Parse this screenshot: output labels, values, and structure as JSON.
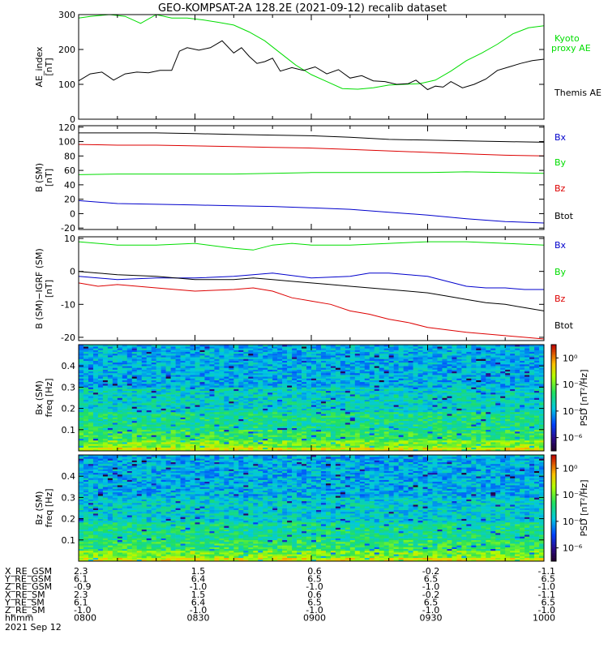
{
  "title": "GEO-KOMPSAT-2A 128.2E (2021-09-12) recalib dataset",
  "colors": {
    "black": "#000000",
    "red": "#dd0000",
    "green": "#00dd00",
    "blue": "#0000cc"
  },
  "chart_data": [
    {
      "type": "line",
      "panel": "ae",
      "ylabel_lines": [
        "AE_index",
        "[nT]"
      ],
      "ylim": [
        0,
        300
      ],
      "yticks": [
        "0",
        "100",
        "200",
        "300"
      ],
      "xlim": [
        0,
        120
      ],
      "series": [
        {
          "name": "Kyoto proxy AE",
          "label_lines": [
            "Kyoto",
            "proxy AE"
          ],
          "color": "green",
          "x": [
            0,
            3,
            8,
            12,
            16,
            20,
            24,
            28,
            32,
            36,
            40,
            44,
            48,
            52,
            56,
            60,
            64,
            68,
            72,
            76,
            80,
            84,
            88,
            92,
            96,
            100,
            104,
            108,
            112,
            116,
            120
          ],
          "y": [
            290,
            295,
            300,
            295,
            275,
            300,
            290,
            290,
            285,
            278,
            270,
            250,
            225,
            190,
            155,
            128,
            108,
            88,
            86,
            90,
            98,
            100,
            102,
            112,
            138,
            168,
            190,
            215,
            245,
            262,
            268
          ]
        },
        {
          "name": "Themis AE",
          "label_lines": [
            "Themis AE"
          ],
          "color": "black",
          "x": [
            0,
            3,
            6,
            9,
            12,
            15,
            18,
            21,
            24,
            26,
            28,
            31,
            34,
            37,
            40,
            42,
            44,
            46,
            48,
            50,
            52,
            55,
            58,
            61,
            64,
            67,
            70,
            73,
            76,
            79,
            82,
            85,
            87,
            90,
            92,
            94,
            96,
            99,
            102,
            105,
            108,
            111,
            114,
            117,
            120
          ],
          "y": [
            110,
            130,
            135,
            112,
            130,
            135,
            133,
            140,
            140,
            195,
            205,
            198,
            205,
            225,
            190,
            205,
            180,
            160,
            165,
            175,
            138,
            148,
            140,
            150,
            130,
            142,
            118,
            125,
            110,
            108,
            100,
            102,
            112,
            85,
            95,
            92,
            108,
            90,
            100,
            115,
            140,
            150,
            160,
            168,
            172
          ]
        }
      ]
    },
    {
      "type": "line",
      "panel": "bsm",
      "ylabel_lines": [
        "B (SM)",
        "[nT]"
      ],
      "ylim": [
        -22,
        122
      ],
      "yticks": [
        "-20",
        "0",
        "20",
        "40",
        "60",
        "80",
        "100",
        "120"
      ],
      "xlim": [
        0,
        120
      ],
      "series": [
        {
          "name": "Bx",
          "color": "black",
          "x": [
            0,
            10,
            20,
            30,
            40,
            50,
            60,
            70,
            80,
            90,
            100,
            110,
            120
          ],
          "y": [
            112,
            112,
            112,
            111,
            110,
            109,
            108,
            106,
            103,
            102,
            101,
            100,
            99
          ]
        },
        {
          "name": "By",
          "color": "green",
          "x": [
            0,
            10,
            20,
            30,
            40,
            50,
            60,
            70,
            80,
            90,
            100,
            110,
            120
          ],
          "y": [
            54,
            55,
            55,
            55,
            55,
            56,
            57,
            57,
            57,
            57,
            58,
            57,
            56
          ]
        },
        {
          "name": "Bz",
          "color": "red",
          "x": [
            0,
            10,
            20,
            30,
            40,
            50,
            60,
            70,
            80,
            90,
            100,
            110,
            120
          ],
          "y": [
            96,
            95,
            95,
            94,
            93,
            92,
            91,
            89,
            87,
            85,
            83,
            81,
            80
          ]
        },
        {
          "name": "Btot",
          "color": "blue",
          "x": [
            0,
            10,
            20,
            30,
            40,
            50,
            60,
            70,
            80,
            90,
            100,
            110,
            120
          ],
          "y": [
            18,
            14,
            13,
            12,
            11,
            10,
            8,
            6,
            2,
            -2,
            -7,
            -11,
            -13
          ]
        }
      ]
    },
    {
      "type": "line",
      "panel": "dbsm",
      "ylabel_lines": [
        "B (SM)−IGRF (SM)",
        "[nT]"
      ],
      "ylim": [
        -21,
        10.5
      ],
      "yticks": [
        "-20",
        "-10",
        "0",
        "10"
      ],
      "xlim": [
        0,
        120
      ],
      "series": [
        {
          "name": "Bx",
          "color": "blue",
          "x": [
            0,
            10,
            20,
            30,
            40,
            50,
            60,
            70,
            75,
            80,
            85,
            90,
            95,
            100,
            105,
            110,
            115,
            120
          ],
          "y": [
            -1.5,
            -2.5,
            -2,
            -2,
            -1.5,
            -0.5,
            -2,
            -1.5,
            -0.5,
            -0.5,
            -1,
            -1.5,
            -3,
            -4.5,
            -5,
            -5,
            -5.5,
            -5.5
          ]
        },
        {
          "name": "By",
          "color": "green",
          "x": [
            0,
            10,
            20,
            30,
            40,
            45,
            50,
            55,
            60,
            70,
            80,
            90,
            100,
            110,
            120
          ],
          "y": [
            9,
            8,
            8,
            8.5,
            7,
            6.5,
            8,
            8.5,
            8,
            8,
            8.5,
            9,
            9,
            8.5,
            8
          ]
        },
        {
          "name": "Bz",
          "color": "red",
          "x": [
            0,
            5,
            10,
            20,
            30,
            40,
            45,
            50,
            55,
            60,
            65,
            70,
            75,
            80,
            85,
            90,
            100,
            110,
            120
          ],
          "y": [
            -3.5,
            -4.5,
            -4,
            -5,
            -6,
            -5.5,
            -5,
            -6,
            -8,
            -9,
            -10,
            -12,
            -13,
            -14.5,
            -15.5,
            -17,
            -18.5,
            -19.5,
            -20.5
          ]
        },
        {
          "name": "Btot",
          "color": "black",
          "x": [
            0,
            5,
            10,
            20,
            30,
            40,
            45,
            50,
            55,
            60,
            65,
            70,
            75,
            80,
            85,
            90,
            95,
            100,
            105,
            110,
            115,
            120
          ],
          "y": [
            0,
            -0.5,
            -1,
            -1.5,
            -2.5,
            -2.5,
            -2,
            -2.5,
            -3,
            -3.5,
            -4,
            -4.5,
            -5,
            -5.5,
            -6,
            -6.5,
            -7.5,
            -8.5,
            -9.5,
            -10,
            -11,
            -12
          ]
        }
      ]
    },
    {
      "type": "heatmap",
      "panel": "psd_bx",
      "ylabel_lines": [
        "Bx (SM)",
        "freq [Hz]"
      ],
      "ylim": [
        0,
        0.5
      ],
      "yticks": [
        "0.1",
        "0.2",
        "0.3",
        "0.4"
      ],
      "xlim": [
        0,
        120
      ],
      "colorbar_label": "PSD [nT²/Hz]",
      "colorbar_ticks": [
        "10⁰",
        "10⁻²",
        "10⁻⁴",
        "10⁻⁶"
      ],
      "colorbar_range_log10": [
        -7,
        1
      ],
      "band_levels_log10": [
        {
          "f_max": 0.02,
          "level": -1.0
        },
        {
          "f_max": 0.05,
          "level": -1.8
        },
        {
          "f_max": 0.1,
          "level": -2.6
        },
        {
          "f_max": 0.18,
          "level": -3.0
        },
        {
          "f_max": 0.3,
          "level": -3.5
        },
        {
          "f_max": 0.5,
          "level": -4.0
        }
      ]
    },
    {
      "type": "heatmap",
      "panel": "psd_bz",
      "ylabel_lines": [
        "Bz (SM)",
        "freq [Hz]"
      ],
      "ylim": [
        0,
        0.5
      ],
      "yticks": [
        "0.1",
        "0.2",
        "0.3",
        "0.4"
      ],
      "xlim": [
        0,
        120
      ],
      "colorbar_label": "PSD [nT²/Hz]",
      "colorbar_ticks": [
        "10⁰",
        "10⁻²",
        "10⁻⁴",
        "10⁻⁶"
      ],
      "colorbar_range_log10": [
        -7,
        1
      ],
      "band_levels_log10": [
        {
          "f_max": 0.02,
          "level": -1.0
        },
        {
          "f_max": 0.05,
          "level": -1.8
        },
        {
          "f_max": 0.1,
          "level": -2.6
        },
        {
          "f_max": 0.18,
          "level": -3.0
        },
        {
          "f_max": 0.3,
          "level": -3.6
        },
        {
          "f_max": 0.5,
          "level": -4.0
        }
      ]
    }
  ],
  "x_axis_table": {
    "tick_minutes": [
      0,
      30,
      60,
      90,
      120
    ],
    "rows": [
      {
        "label": "X_RE_GSM",
        "values": [
          "2.3",
          "1.5",
          "0.6",
          "-0.2",
          "-1.1"
        ]
      },
      {
        "label": "Y_RE_GSM",
        "values": [
          "6.1",
          "6.4",
          "6.5",
          "6.5",
          "6.5"
        ]
      },
      {
        "label": "Z_RE_GSM",
        "values": [
          "-0.9",
          "-1.0",
          "-1.0",
          "-1.0",
          "-1.0"
        ]
      },
      {
        "label": "X_RE_SM",
        "values": [
          "2.3",
          "1.5",
          "0.6",
          "-0.2",
          "-1.1"
        ]
      },
      {
        "label": "Y_RE_SM",
        "values": [
          "6.1",
          "6.4",
          "6.5",
          "6.5",
          "6.5"
        ]
      },
      {
        "label": "Z_RE_SM",
        "values": [
          "-1.0",
          "-1.0",
          "-1.0",
          "-1.0",
          "-1.0"
        ]
      },
      {
        "label": "hhmm",
        "values": [
          "0800",
          "0830",
          "0900",
          "0930",
          "1000"
        ]
      }
    ],
    "date": "2021 Sep 12"
  }
}
